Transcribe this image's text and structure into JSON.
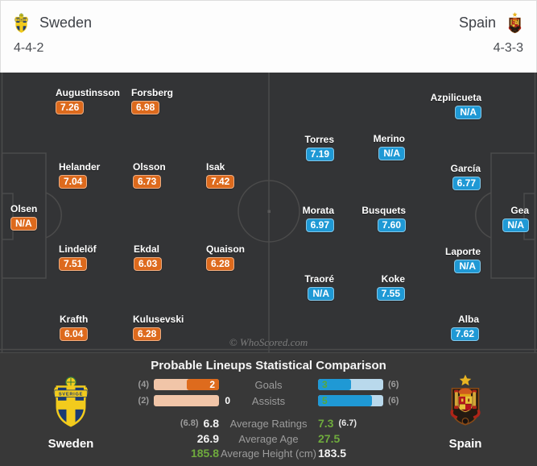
{
  "header": {
    "home": {
      "name": "Sweden",
      "formation": "4-4-2"
    },
    "away": {
      "name": "Spain",
      "formation": "4-3-3"
    }
  },
  "pitch": {
    "watermark": "© WhoScored.com",
    "home_players": [
      {
        "name": "Olsen",
        "rating": "N/A"
      },
      {
        "name": "Augustinsson",
        "rating": "7.26"
      },
      {
        "name": "Forsberg",
        "rating": "6.98"
      },
      {
        "name": "Helander",
        "rating": "7.04"
      },
      {
        "name": "Olsson",
        "rating": "6.73"
      },
      {
        "name": "Isak",
        "rating": "7.42"
      },
      {
        "name": "Lindelöf",
        "rating": "7.51"
      },
      {
        "name": "Ekdal",
        "rating": "6.03"
      },
      {
        "name": "Quaison",
        "rating": "6.28"
      },
      {
        "name": "Krafth",
        "rating": "6.04"
      },
      {
        "name": "Kulusevski",
        "rating": "6.28"
      }
    ],
    "away_players": [
      {
        "name": "Gea",
        "rating": "N/A"
      },
      {
        "name": "Azpilicueta",
        "rating": "N/A"
      },
      {
        "name": "García",
        "rating": "6.77"
      },
      {
        "name": "Laporte",
        "rating": "N/A"
      },
      {
        "name": "Alba",
        "rating": "7.62"
      },
      {
        "name": "Torres",
        "rating": "7.19"
      },
      {
        "name": "Merino",
        "rating": "N/A"
      },
      {
        "name": "Morata",
        "rating": "6.97"
      },
      {
        "name": "Busquets",
        "rating": "7.60"
      },
      {
        "name": "Traoré",
        "rating": "N/A"
      },
      {
        "name": "Koke",
        "rating": "7.55"
      }
    ]
  },
  "panel": {
    "title": "Probable Lineups Statistical Comparison",
    "home_team_label": "Sweden",
    "away_team_label": "Spain",
    "stats": {
      "goals": {
        "label": "Goals",
        "home_max": "(4)",
        "home_value": "2",
        "home_fill": "50%",
        "away_value": "3",
        "away_fill": "50%",
        "away_max": "(6)"
      },
      "assists": {
        "label": "Assists",
        "home_max": "(2)",
        "home_value": "0",
        "home_fill": "0%",
        "away_value": "5",
        "away_fill": "83%",
        "away_max": "(6)"
      },
      "ratings": {
        "label": "Average Ratings",
        "home_pre": "(6.8)",
        "home_value": "6.8",
        "away_value": "7.3",
        "away_post": "(6.7)"
      },
      "age": {
        "label": "Average Age",
        "home_value": "26.9",
        "away_value": "27.5"
      },
      "height": {
        "label": "Average Height (cm)",
        "home_value": "185.8",
        "away_value": "183.5"
      }
    }
  },
  "colors": {
    "home_accent": "#dd6a1d",
    "home_bar_bg": "#f1c5a8",
    "away_accent": "#1f99d5",
    "away_bar_bg": "#b9d9ec",
    "better_value_green": "#6fab3d",
    "pitch_bg": "#333436",
    "panel_bg": "#383838"
  }
}
